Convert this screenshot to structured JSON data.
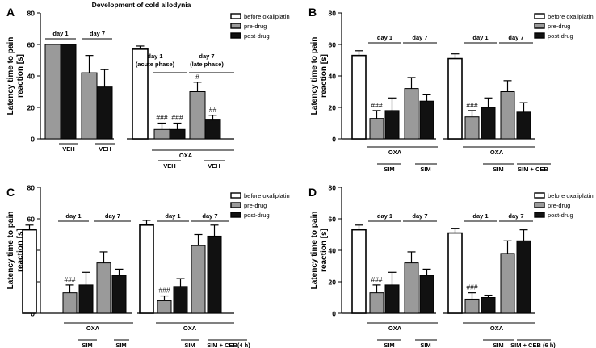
{
  "panels": [
    {
      "letter": "A",
      "title": "Development of cold allodynia",
      "ylabel": [
        "Latency time to pain",
        "reaction [s]"
      ],
      "legend": [
        "before oxaliplatin",
        "pre-drug",
        "post-drug"
      ],
      "top_brackets": [
        "day 1",
        "day 7"
      ],
      "phase_labels": [
        [
          "day 1",
          "(acute phase)"
        ],
        [
          "day 7",
          "(late phase)"
        ]
      ],
      "bottom_labels": [
        "VEH",
        "VEH",
        "OXA",
        "VEH",
        "VEH"
      ]
    },
    {
      "letter": "B",
      "ylabel": [
        "Latency time to pain",
        "reaction [s]"
      ],
      "legend": [
        "before oxaliplatin",
        "pre-drug",
        "post-drug"
      ],
      "top_brackets": [
        "day 1",
        "day 7",
        "day 1",
        "day 7"
      ],
      "bottom_labels": [
        "OXA",
        "SIM",
        "SIM",
        "OXA",
        "SIM",
        "SIM + CEB"
      ]
    },
    {
      "letter": "C",
      "ylabel": [
        "Latency time to pain",
        "reaction [s]"
      ],
      "legend": [
        "before oxaliplatin",
        "pre-drug",
        "post-drug"
      ],
      "top_brackets": [
        "day 1",
        "day 7",
        "day 1",
        "day 7"
      ],
      "bottom_labels": [
        "OXA",
        "SIM",
        "SIM",
        "OXA",
        "SIM",
        "SIM + CEB(4 h)"
      ]
    },
    {
      "letter": "D",
      "ylabel": [
        "Latency time to pain",
        "reaction [s]"
      ],
      "legend": [
        "before oxaliplatin",
        "pre-drug",
        "post-drug"
      ],
      "top_brackets": [
        "day 1",
        "day 7",
        "day 1",
        "day 7"
      ],
      "bottom_labels": [
        "OXA",
        "SIM",
        "SIM",
        "OXA",
        "SIM",
        "SIM + CEB (6 h)"
      ]
    }
  ],
  "chart_data": [
    {
      "type": "bar",
      "title": "Development of cold allodynia",
      "ylabel": "Latency time to pain reaction [s]",
      "ylim": [
        0,
        80
      ],
      "yticks": [
        0,
        20,
        40,
        60,
        80
      ],
      "bars": [
        {
          "series": "pre-drug",
          "value": 60,
          "error": 0
        },
        {
          "series": "post-drug",
          "value": 60,
          "error": 0
        },
        {
          "series": "pre-drug",
          "value": 42,
          "error": 11
        },
        {
          "series": "post-drug",
          "value": 33,
          "error": 11
        },
        {
          "series": "before oxaliplatin",
          "value": 57,
          "error": 2
        },
        {
          "series": "pre-drug",
          "value": 6,
          "error": 4,
          "label": "###"
        },
        {
          "series": "post-drug",
          "value": 6,
          "error": 4,
          "label": "###"
        },
        {
          "series": "pre-drug",
          "value": 30,
          "error": 6,
          "label": "#"
        },
        {
          "series": "post-drug",
          "value": 12,
          "error": 3,
          "label": "##"
        }
      ]
    },
    {
      "type": "bar",
      "ylabel": "Latency time to pain reaction [s]",
      "ylim": [
        0,
        80
      ],
      "yticks": [
        0,
        20,
        40,
        60,
        80
      ],
      "bars": [
        {
          "series": "before oxaliplatin",
          "value": 53,
          "error": 3
        },
        {
          "series": "pre-drug",
          "value": 13,
          "error": 5,
          "label": "###"
        },
        {
          "series": "post-drug",
          "value": 18,
          "error": 8
        },
        {
          "series": "pre-drug",
          "value": 32,
          "error": 7
        },
        {
          "series": "post-drug",
          "value": 24,
          "error": 4
        },
        {
          "series": "before oxaliplatin",
          "value": 51,
          "error": 3
        },
        {
          "series": "pre-drug",
          "value": 14,
          "error": 4,
          "label": "###"
        },
        {
          "series": "post-drug",
          "value": 20,
          "error": 6
        },
        {
          "series": "pre-drug",
          "value": 30,
          "error": 7
        },
        {
          "series": "post-drug",
          "value": 17,
          "error": 6
        }
      ]
    },
    {
      "type": "bar",
      "ylabel": "Latency time to pain reaction [s]",
      "ylim": [
        0,
        80
      ],
      "yticks": [
        0,
        20,
        40,
        60,
        80
      ],
      "bars": [
        {
          "series": "before oxaliplatin",
          "value": 53,
          "error": 3
        },
        {
          "series": "pre-drug",
          "value": 13,
          "error": 5,
          "label": "###"
        },
        {
          "series": "post-drug",
          "value": 18,
          "error": 8
        },
        {
          "series": "pre-drug",
          "value": 32,
          "error": 7
        },
        {
          "series": "post-drug",
          "value": 24,
          "error": 4
        },
        {
          "series": "before oxaliplatin",
          "value": 56,
          "error": 3
        },
        {
          "series": "pre-drug",
          "value": 8,
          "error": 3,
          "label": "###"
        },
        {
          "series": "post-drug",
          "value": 17,
          "error": 5
        },
        {
          "series": "pre-drug",
          "value": 43,
          "error": 7
        },
        {
          "series": "post-drug",
          "value": 49,
          "error": 7
        }
      ]
    },
    {
      "type": "bar",
      "ylabel": "Latency time to pain reaction [s]",
      "ylim": [
        0,
        80
      ],
      "yticks": [
        0,
        20,
        40,
        60,
        80
      ],
      "bars": [
        {
          "series": "before oxaliplatin",
          "value": 53,
          "error": 3
        },
        {
          "series": "pre-drug",
          "value": 13,
          "error": 5,
          "label": "###"
        },
        {
          "series": "post-drug",
          "value": 18,
          "error": 8
        },
        {
          "series": "pre-drug",
          "value": 32,
          "error": 7
        },
        {
          "series": "post-drug",
          "value": 24,
          "error": 4
        },
        {
          "series": "before oxaliplatin",
          "value": 51,
          "error": 3
        },
        {
          "series": "pre-drug",
          "value": 9,
          "error": 4,
          "label": "###"
        },
        {
          "series": "post-drug",
          "value": 10,
          "error": 1.5
        },
        {
          "series": "pre-drug",
          "value": 38,
          "error": 8
        },
        {
          "series": "post-drug",
          "value": 46,
          "error": 7
        }
      ]
    }
  ]
}
